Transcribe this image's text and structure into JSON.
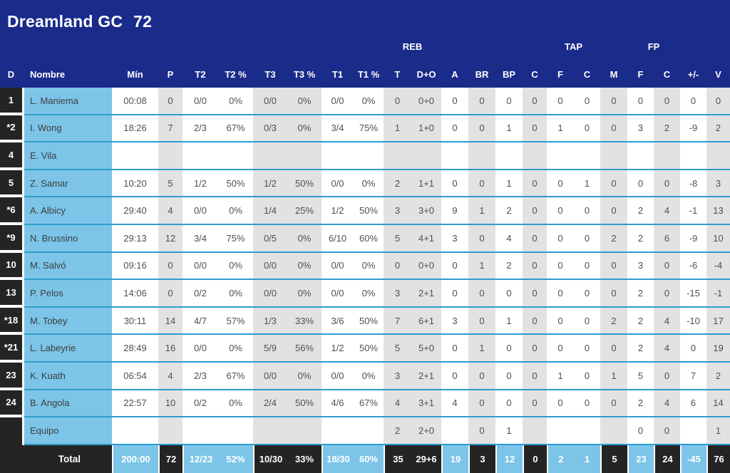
{
  "team": {
    "name": "Dreamland GC",
    "score": "72"
  },
  "colors": {
    "header_bg": "#1b2b8a",
    "dark_cell": "#242424",
    "light_blue": "#7cc4e8",
    "row_line": "#2d9ccd",
    "stripe": "#e2e2e2"
  },
  "table": {
    "group_headers": [
      {
        "label": "REB"
      },
      {
        "label": "TAP"
      },
      {
        "label": "FP"
      }
    ],
    "columns": [
      "D",
      "Nombre",
      "Mín",
      "P",
      "T2",
      "T2 %",
      "T3",
      "T3 %",
      "T1",
      "T1 %",
      "T",
      "D+O",
      "A",
      "BR",
      "BP",
      "C",
      "F",
      "C",
      "M",
      "F",
      "C",
      "+/-",
      "V"
    ],
    "rows": [
      {
        "d": "1",
        "name": "L. Maniema",
        "stats": [
          "00:08",
          "0",
          "0/0",
          "0%",
          "0/0",
          "0%",
          "0/0",
          "0%",
          "0",
          "0+0",
          "0",
          "0",
          "0",
          "0",
          "0",
          "0",
          "0",
          "0",
          "0",
          "0",
          "0"
        ]
      },
      {
        "d": "*2",
        "name": "I. Wong",
        "stats": [
          "18:26",
          "7",
          "2/3",
          "67%",
          "0/3",
          "0%",
          "3/4",
          "75%",
          "1",
          "1+0",
          "0",
          "0",
          "1",
          "0",
          "1",
          "0",
          "0",
          "3",
          "2",
          "-9",
          "2"
        ]
      },
      {
        "d": "4",
        "name": "E. Vila",
        "stats": [
          "",
          "",
          "",
          "",
          "",
          "",
          "",
          "",
          "",
          "",
          "",
          "",
          "",
          "",
          "",
          "",
          "",
          "",
          "",
          "",
          ""
        ]
      },
      {
        "d": "5",
        "name": "Z. Samar",
        "stats": [
          "10:20",
          "5",
          "1/2",
          "50%",
          "1/2",
          "50%",
          "0/0",
          "0%",
          "2",
          "1+1",
          "0",
          "0",
          "1",
          "0",
          "0",
          "1",
          "0",
          "0",
          "0",
          "-8",
          "3"
        ]
      },
      {
        "d": "*6",
        "name": "A. Albicy",
        "stats": [
          "29:40",
          "4",
          "0/0",
          "0%",
          "1/4",
          "25%",
          "1/2",
          "50%",
          "3",
          "3+0",
          "9",
          "1",
          "2",
          "0",
          "0",
          "0",
          "0",
          "2",
          "4",
          "-1",
          "13"
        ]
      },
      {
        "d": "*9",
        "name": "N. Brussino",
        "stats": [
          "29:13",
          "12",
          "3/4",
          "75%",
          "0/5",
          "0%",
          "6/10",
          "60%",
          "5",
          "4+1",
          "3",
          "0",
          "4",
          "0",
          "0",
          "0",
          "2",
          "2",
          "6",
          "-9",
          "10"
        ]
      },
      {
        "d": "10",
        "name": "M. Salvó",
        "stats": [
          "09:16",
          "0",
          "0/0",
          "0%",
          "0/0",
          "0%",
          "0/0",
          "0%",
          "0",
          "0+0",
          "0",
          "1",
          "2",
          "0",
          "0",
          "0",
          "0",
          "3",
          "0",
          "-6",
          "-4"
        ]
      },
      {
        "d": "13",
        "name": "P. Pelos",
        "stats": [
          "14:06",
          "0",
          "0/2",
          "0%",
          "0/0",
          "0%",
          "0/0",
          "0%",
          "3",
          "2+1",
          "0",
          "0",
          "0",
          "0",
          "0",
          "0",
          "0",
          "2",
          "0",
          "-15",
          "-1"
        ]
      },
      {
        "d": "*18",
        "name": "M. Tobey",
        "stats": [
          "30:11",
          "14",
          "4/7",
          "57%",
          "1/3",
          "33%",
          "3/6",
          "50%",
          "7",
          "6+1",
          "3",
          "0",
          "1",
          "0",
          "0",
          "0",
          "2",
          "2",
          "4",
          "-10",
          "17"
        ]
      },
      {
        "d": "*21",
        "name": "L. Labeyrie",
        "stats": [
          "28:49",
          "16",
          "0/0",
          "0%",
          "5/9",
          "56%",
          "1/2",
          "50%",
          "5",
          "5+0",
          "0",
          "1",
          "0",
          "0",
          "0",
          "0",
          "0",
          "2",
          "4",
          "0",
          "19"
        ]
      },
      {
        "d": "23",
        "name": "K. Kuath",
        "stats": [
          "06:54",
          "4",
          "2/3",
          "67%",
          "0/0",
          "0%",
          "0/0",
          "0%",
          "3",
          "2+1",
          "0",
          "0",
          "0",
          "0",
          "1",
          "0",
          "1",
          "5",
          "0",
          "7",
          "2"
        ]
      },
      {
        "d": "24",
        "name": "B. Angola",
        "stats": [
          "22:57",
          "10",
          "0/2",
          "0%",
          "2/4",
          "50%",
          "4/6",
          "67%",
          "4",
          "3+1",
          "4",
          "0",
          "0",
          "0",
          "0",
          "0",
          "0",
          "2",
          "4",
          "6",
          "14"
        ]
      },
      {
        "d": "",
        "name": "Equipo",
        "stats": [
          "",
          "",
          "",
          "",
          "",
          "",
          "",
          "",
          "2",
          "2+0",
          "",
          "0",
          "1",
          "",
          "",
          "",
          "",
          "0",
          "0",
          "",
          "1"
        ]
      }
    ],
    "total": {
      "label": "Total",
      "stats": [
        "200:00",
        "72",
        "12/23",
        "52%",
        "10/30",
        "33%",
        "18/30",
        "60%",
        "35",
        "29+6",
        "19",
        "3",
        "12",
        "0",
        "2",
        "1",
        "5",
        "23",
        "24",
        "-45",
        "76"
      ]
    }
  }
}
